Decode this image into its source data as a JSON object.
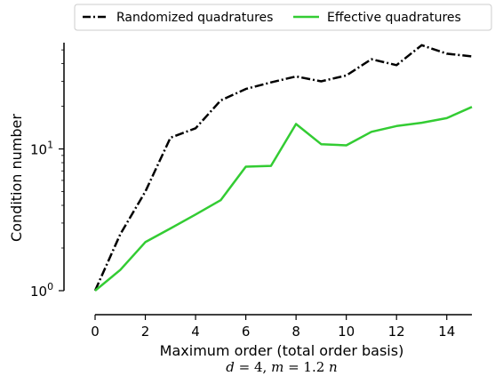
{
  "chart_data": {
    "type": "line",
    "title": "",
    "xlabel": "Maximum order (total order basis)",
    "ylabel": "Condition number",
    "subtitle": {
      "d_var": "d",
      "d_eq": " = 4, ",
      "m_var": "m",
      "m_eq": " = 1.2 ",
      "n_var": "n"
    },
    "xlim": [
      0,
      15
    ],
    "ylim_log10": [
      0,
      1.75
    ],
    "yscale": "log",
    "x_ticks": [
      0,
      2,
      4,
      6,
      8,
      10,
      12,
      14
    ],
    "x_tick_labels": [
      "0",
      "2",
      "4",
      "6",
      "8",
      "10",
      "12",
      "14"
    ],
    "y_ticks": [
      1,
      10
    ],
    "y_tick_labels": [
      {
        "base": "10",
        "exp": "0"
      },
      {
        "base": "10",
        "exp": "1"
      }
    ],
    "legend_position": "top",
    "series": [
      {
        "name": "Randomized quadratures",
        "style": "dashdot",
        "color": "#000000",
        "x": [
          0,
          1,
          2,
          3,
          4,
          5,
          6,
          7,
          8,
          9,
          10,
          11,
          12,
          13,
          14,
          15
        ],
        "y": [
          1.0,
          2.5,
          5.0,
          12.0,
          14.0,
          22.0,
          26.5,
          29.5,
          32.5,
          30.0,
          33.0,
          43.0,
          39.0,
          54.0,
          47.0,
          45.0
        ]
      },
      {
        "name": "Effective quadratures",
        "style": "solid",
        "color": "#33cc33",
        "x": [
          0,
          1,
          2,
          3,
          4,
          5,
          6,
          7,
          8,
          9,
          10,
          11,
          12,
          13,
          14,
          15
        ],
        "y": [
          1.0,
          1.4,
          2.2,
          2.75,
          3.45,
          4.35,
          7.5,
          7.6,
          15.0,
          10.8,
          10.6,
          13.2,
          14.5,
          15.3,
          16.5,
          19.8
        ]
      }
    ]
  }
}
